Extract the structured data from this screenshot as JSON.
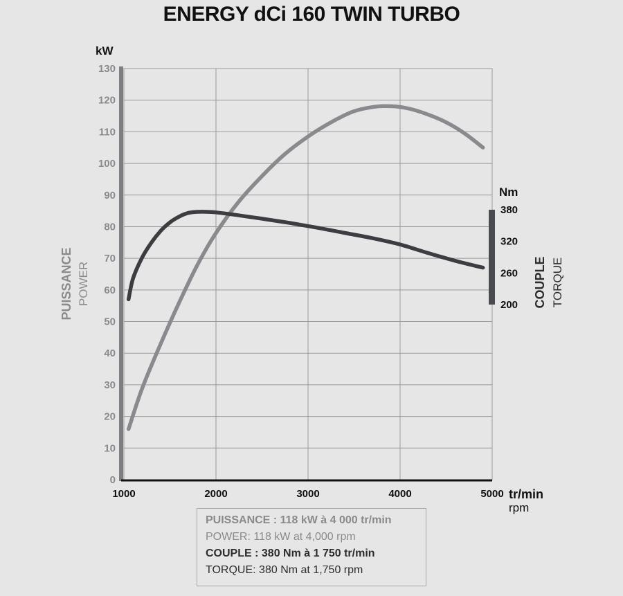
{
  "title": "ENERGY dCi 160 TWIN TURBO",
  "colors": {
    "power": "#8a8a8e",
    "torque": "#3c3d41",
    "grid": "#9a9a9a",
    "background": "#e6e6e6"
  },
  "summary": {
    "power_fr": "PUISSANCE : 118 kW à 4 000 tr/min",
    "power_en": "POWER: 118 kW at 4,000 rpm",
    "torque_fr": "COUPLE : 380 Nm à 1 750 tr/min",
    "torque_en": "TORQUE: 380 Nm at 1,750 rpm"
  },
  "chart_data": {
    "type": "line",
    "title": "ENERGY dCi 160 TWIN TURBO",
    "x_axis": {
      "label_fr": "tr/min",
      "label_en": "rpm",
      "range": [
        1000,
        5000
      ],
      "ticks": [
        1000,
        2000,
        3000,
        4000,
        5000
      ],
      "grid": true
    },
    "y_axis_left": {
      "unit": "kW",
      "label_fr": "PUISSANCE",
      "label_en": "POWER",
      "range": [
        0,
        130
      ],
      "ticks": [
        0,
        10,
        20,
        30,
        40,
        50,
        60,
        70,
        80,
        90,
        100,
        110,
        120,
        130
      ]
    },
    "y_axis_right": {
      "unit": "Nm",
      "label_fr": "COUPLE",
      "label_en": "TORQUE",
      "range": [
        200,
        380
      ],
      "ticks": [
        200,
        260,
        320,
        380
      ]
    },
    "series": [
      {
        "key": "power",
        "axis": "left",
        "color": "#8a8a8e",
        "x": [
          1050,
          1200,
          1400,
          1600,
          1800,
          2000,
          2250,
          2500,
          2750,
          3000,
          3250,
          3500,
          3750,
          3950,
          4100,
          4300,
          4500,
          4700,
          4900
        ],
        "y": [
          16,
          29,
          43,
          56,
          68,
          78,
          88,
          96,
          103,
          108.5,
          113,
          116.5,
          118,
          118,
          117.3,
          115.5,
          113,
          109.5,
          105
        ]
      },
      {
        "key": "torque",
        "axis": "right",
        "color": "#3c3d41",
        "x": [
          1050,
          1100,
          1200,
          1300,
          1400,
          1500,
          1600,
          1700,
          1800,
          1900,
          2000,
          2200,
          2500,
          2800,
          3100,
          3400,
          3700,
          4000,
          4300,
          4600,
          4900
        ],
        "y": [
          210,
          250,
          290,
          318,
          340,
          356,
          367,
          374,
          376,
          376,
          375,
          370.5,
          363,
          355,
          346,
          336,
          326,
          314,
          298,
          283,
          270
        ]
      }
    ]
  }
}
